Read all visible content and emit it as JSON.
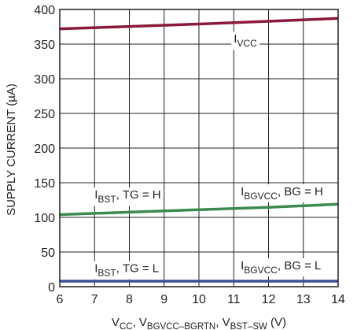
{
  "chart_data": {
    "type": "line",
    "title": "",
    "ylabel": "SUPPLY CURRENT (µA)",
    "xlabel": {
      "parts": [
        {
          "main": "V",
          "sub": "CC"
        },
        {
          "main": ", V",
          "sub": "BGVCC–BGRTN"
        },
        {
          "main": ", V",
          "sub": "BST–SW"
        },
        {
          "main": " (V)",
          "sub": ""
        }
      ]
    },
    "xlim": [
      6,
      14
    ],
    "ylim": [
      0,
      400
    ],
    "xticks": [
      "6",
      "7",
      "8",
      "9",
      "10",
      "11",
      "12",
      "13",
      "14"
    ],
    "yticks": [
      "0",
      "50",
      "100",
      "150",
      "200",
      "250",
      "300",
      "350",
      "400"
    ],
    "grid": true,
    "colors": {
      "vcc": "#8b1a3a",
      "bst_high": "#3c8a4f",
      "bst_low": "#3e4f9a",
      "grid": "#231f20"
    },
    "series": [
      {
        "key": "vcc",
        "x": [
          6,
          8,
          10,
          12,
          14
        ],
        "y": [
          372,
          375.5,
          379,
          383,
          387
        ]
      },
      {
        "key": "bst_high",
        "x": [
          6,
          8,
          10,
          12,
          14
        ],
        "y": [
          104,
          107.5,
          111,
          114.5,
          119
        ]
      },
      {
        "key": "bst_low",
        "x": [
          6,
          14
        ],
        "y": [
          8,
          8
        ]
      }
    ],
    "annotations": [
      {
        "key": "vcc",
        "main": "I",
        "sub": "VCC",
        "rest": "",
        "x": 11.0,
        "y": 352
      },
      {
        "key": "bst_tgh",
        "main": "I",
        "sub": "BST",
        "rest": ", TG = H",
        "x": 7.0,
        "y": 127
      },
      {
        "key": "bgvcc_bgh",
        "main": "I",
        "sub": "BGVCC",
        "rest": ", BG = H",
        "x": 11.2,
        "y": 132
      },
      {
        "key": "bst_tgl",
        "main": "I",
        "sub": "BST",
        "rest": ", TG = L",
        "x": 7.0,
        "y": 21
      },
      {
        "key": "bgvcc_bgl",
        "main": "I",
        "sub": "BGVCC",
        "rest": ", BG = L",
        "x": 11.2,
        "y": 25
      }
    ]
  }
}
